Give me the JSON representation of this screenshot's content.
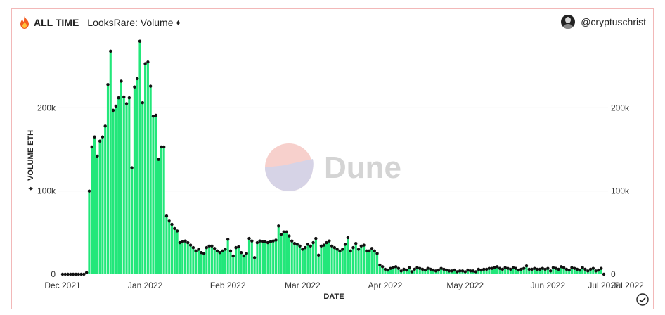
{
  "header": {
    "scope_label": "ALL TIME",
    "chart_title": "LooksRare: Volume",
    "title_symbol": "♦",
    "author": "@cryptuschrist"
  },
  "watermark": "Dune",
  "colors": {
    "bar": "#22e77a",
    "dot": "#111111",
    "grid": "#e9e9e9",
    "border": "#f2b8b8"
  },
  "chart_data": {
    "type": "bar",
    "xlabel": "DATE",
    "ylabel": "VOLUME ETH",
    "ylabel_symbol": "♦",
    "ylim": [
      0,
      300000
    ],
    "yticks": [
      0,
      100000,
      200000
    ],
    "ytick_labels": [
      "0",
      "100k",
      "200k"
    ],
    "x_ticks": [
      "Dec 2021",
      "Jan 2022",
      "Feb 2022",
      "Mar 2022",
      "Apr 2022",
      "May 2022",
      "Jun 2022",
      "Jul 2022",
      "Jul 2022"
    ],
    "start": "2021-12-01",
    "values": [
      0,
      0,
      0,
      0,
      0,
      0,
      0,
      0,
      0,
      2000,
      100000,
      153000,
      165000,
      142000,
      160000,
      165000,
      178000,
      228000,
      268000,
      197000,
      202000,
      212000,
      232000,
      213000,
      205000,
      212000,
      128000,
      225000,
      235000,
      280000,
      206000,
      253000,
      255000,
      226000,
      190000,
      191000,
      138000,
      153000,
      153000,
      70000,
      64000,
      60000,
      55000,
      52000,
      38000,
      39000,
      40000,
      38000,
      35000,
      32000,
      28000,
      30000,
      26000,
      25000,
      32000,
      34000,
      34000,
      31000,
      28000,
      26000,
      28000,
      30000,
      42000,
      28000,
      22000,
      32000,
      33000,
      26000,
      22000,
      25000,
      43000,
      40000,
      20000,
      38000,
      40000,
      39000,
      39000,
      38000,
      39000,
      40000,
      41000,
      58000,
      48000,
      51000,
      51000,
      46000,
      40000,
      37000,
      36000,
      34000,
      30000,
      32000,
      36000,
      34000,
      38000,
      43000,
      23000,
      34000,
      35000,
      38000,
      40000,
      34000,
      32000,
      30000,
      28000,
      30000,
      36000,
      44000,
      28000,
      32000,
      37000,
      30000,
      34000,
      35000,
      28000,
      28000,
      31000,
      28000,
      25000,
      11000,
      9000,
      6000,
      5000,
      7000,
      8000,
      9000,
      7000,
      4000,
      6000,
      5000,
      8000,
      3000,
      6000,
      8000,
      7000,
      6000,
      5000,
      7000,
      6000,
      5000,
      4000,
      5000,
      7000,
      6000,
      5000,
      4000,
      4000,
      5000,
      3000,
      4000,
      4000,
      3000,
      5000,
      4000,
      4000,
      3000,
      6000,
      5000,
      6000,
      6000,
      7000,
      7000,
      8000,
      9000,
      7000,
      6000,
      8000,
      7000,
      6000,
      8000,
      7000,
      5000,
      6000,
      7000,
      10000,
      6000,
      6000,
      7000,
      6000,
      6000,
      7000,
      6000,
      7000,
      4000,
      8000,
      7000,
      6000,
      9000,
      8000,
      6000,
      5000,
      8000,
      7000,
      6000,
      5000,
      8000,
      6000,
      4000,
      6000,
      7000,
      4000,
      5000,
      7000,
      0
    ]
  }
}
